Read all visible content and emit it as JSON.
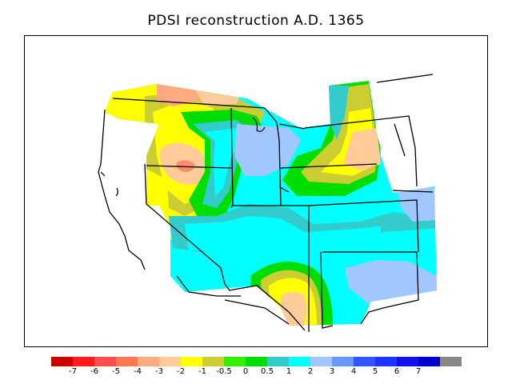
{
  "title": "PDSI reconstruction A.D. 1365",
  "legend": {
    "colors": [
      "#cc0000",
      "#ff1a1a",
      "#ff4d4d",
      "#ff7a4d",
      "#ffaa80",
      "#ffcc99",
      "#ffff00",
      "#cccc33",
      "#33ee00",
      "#00dd00",
      "#33cccc",
      "#00ffff",
      "#a0c8ff",
      "#6699ff",
      "#3355ff",
      "#2233ff",
      "#1111ee",
      "#0000cc",
      "#888888"
    ],
    "labels": [
      "-7",
      "-6",
      "-5",
      "-4",
      "-3",
      "-2",
      "-1",
      "-0.5",
      "0",
      "0.5",
      "1",
      "2",
      "3",
      "4",
      "5",
      "6",
      "7"
    ]
  }
}
